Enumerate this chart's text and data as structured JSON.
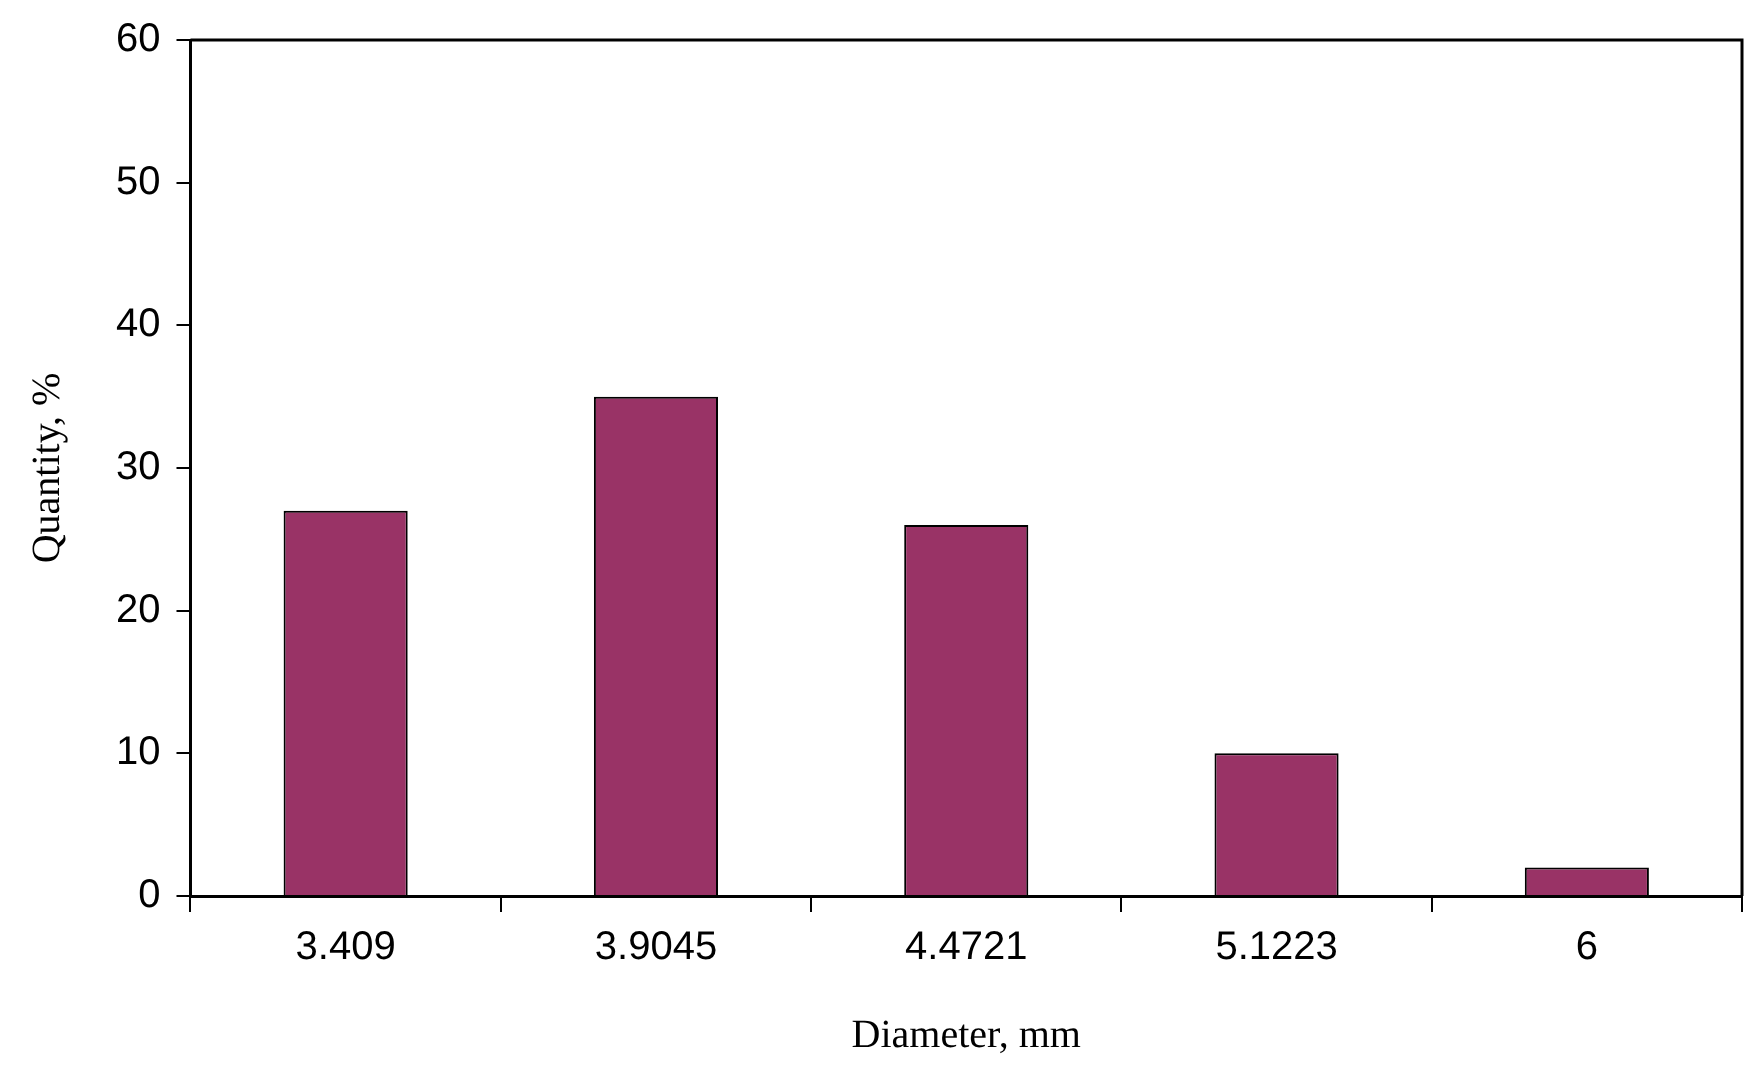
{
  "chart_data": {
    "type": "bar",
    "xlabel": "Diameter, mm",
    "ylabel": "Quantity, %",
    "categories": [
      "3.409",
      "3.9045",
      "4.4721",
      "5.1223",
      "6"
    ],
    "values": [
      27,
      35,
      26,
      10,
      2
    ],
    "color": "#993366",
    "ylim": [
      0,
      60
    ],
    "yticks": [
      0,
      10,
      20,
      30,
      40,
      50,
      60
    ],
    "grid": false,
    "legend": false
  }
}
